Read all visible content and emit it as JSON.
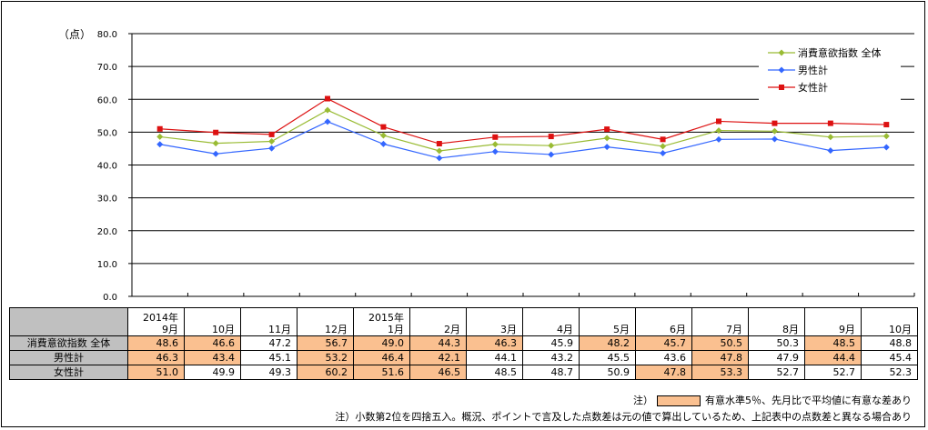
{
  "chart_data": {
    "type": "line",
    "ylabel": "（点）",
    "ylim": [
      0,
      80
    ],
    "yticks": [
      "0.0",
      "10.0",
      "20.0",
      "30.0",
      "40.0",
      "50.0",
      "60.0",
      "70.0",
      "80.0"
    ],
    "categories": [
      [
        "2014年",
        "9月"
      ],
      [
        "",
        "10月"
      ],
      [
        "",
        "11月"
      ],
      [
        "",
        "12月"
      ],
      [
        "2015年",
        "1月"
      ],
      [
        "",
        "2月"
      ],
      [
        "",
        "3月"
      ],
      [
        "",
        "4月"
      ],
      [
        "",
        "5月"
      ],
      [
        "",
        "6月"
      ],
      [
        "",
        "7月"
      ],
      [
        "",
        "8月"
      ],
      [
        "",
        "9月"
      ],
      [
        "",
        "10月"
      ]
    ],
    "series": [
      {
        "name": "消費意欲指数 全体",
        "color": "#99bb33",
        "marker": "diamond",
        "values": [
          "48.6",
          "46.6",
          "47.2",
          "56.7",
          "49.0",
          "44.3",
          "46.3",
          "45.9",
          "48.2",
          "45.7",
          "50.5",
          "50.3",
          "48.5",
          "48.8"
        ],
        "significant": [
          true,
          true,
          false,
          true,
          true,
          true,
          true,
          false,
          true,
          true,
          true,
          false,
          true,
          false
        ]
      },
      {
        "name": "男性計",
        "color": "#3366ff",
        "marker": "diamond",
        "values": [
          "46.3",
          "43.4",
          "45.1",
          "53.2",
          "46.4",
          "42.1",
          "44.1",
          "43.2",
          "45.5",
          "43.6",
          "47.8",
          "47.9",
          "44.4",
          "45.4"
        ],
        "significant": [
          true,
          true,
          false,
          true,
          true,
          true,
          false,
          false,
          false,
          false,
          true,
          false,
          true,
          false
        ]
      },
      {
        "name": "女性計",
        "color": "#dd1111",
        "marker": "square",
        "values": [
          "51.0",
          "49.9",
          "49.3",
          "60.2",
          "51.6",
          "46.5",
          "48.5",
          "48.7",
          "50.9",
          "47.8",
          "53.3",
          "52.7",
          "52.7",
          "52.3"
        ],
        "significant": [
          true,
          false,
          false,
          true,
          true,
          true,
          false,
          false,
          false,
          true,
          true,
          false,
          false,
          false
        ]
      }
    ]
  },
  "notes": {
    "significance_prefix": "注）",
    "significance_text": "有意水準5％、先月比で平均値に有意な差あり",
    "rounding": "注）小数第2位を四捨五入。概況、ポイントで言及した点数差は元の値で算出しているため、上記表中の点数差と異なる場合あり"
  },
  "colors": {
    "significant_fill": "#fac090",
    "header_fill": "#c0c0c0",
    "grid": "#000000"
  }
}
